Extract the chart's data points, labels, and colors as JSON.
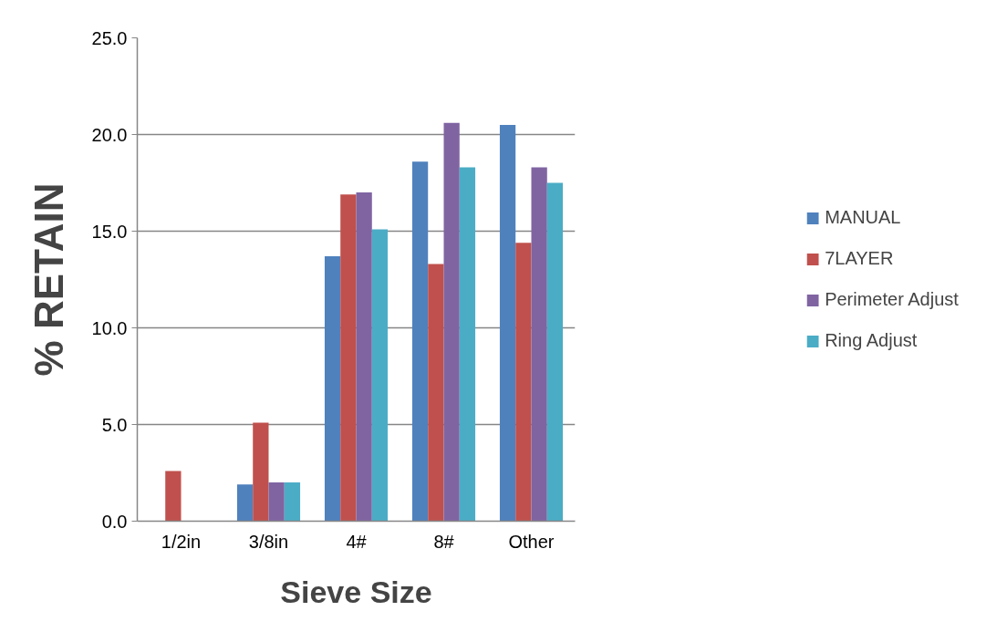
{
  "chart_data": {
    "type": "bar",
    "xlabel": "Sieve Size",
    "ylabel": "% RETAIN",
    "categories": [
      "1/2in",
      "3/8in",
      "4#",
      "8#",
      "Other"
    ],
    "series": [
      {
        "name": "MANUAL",
        "color": "#4f81bd",
        "values": [
          0,
          1.9,
          13.7,
          18.6,
          20.5
        ]
      },
      {
        "name": "7LAYER",
        "color": "#c0504d",
        "values": [
          2.6,
          5.1,
          16.9,
          13.3,
          14.4
        ]
      },
      {
        "name": "Perimeter Adjust",
        "color": "#8064a2",
        "values": [
          0,
          2.0,
          17.0,
          20.6,
          18.3
        ]
      },
      {
        "name": "Ring Adjust",
        "color": "#4bacc6",
        "values": [
          0,
          2.0,
          15.1,
          18.3,
          17.5
        ]
      }
    ],
    "ylim": [
      0,
      25
    ],
    "yticks": [
      {
        "value": 0,
        "label": "0.0"
      },
      {
        "value": 5,
        "label": "5.0"
      },
      {
        "value": 10,
        "label": "10.0"
      },
      {
        "value": 15,
        "label": "15.0"
      },
      {
        "value": 20,
        "label": "20.0"
      },
      {
        "value": 25,
        "label": "25.0"
      }
    ],
    "grid": "y",
    "legend": "right"
  }
}
